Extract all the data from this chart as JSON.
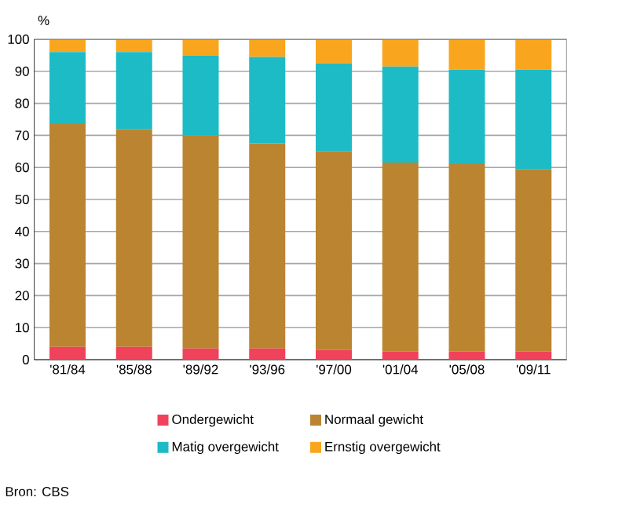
{
  "chart_data": {
    "type": "bar",
    "stacked": true,
    "ylabel": "%",
    "categories": [
      "'81/84",
      "'85/88",
      "'89/92",
      "'93/96",
      "'97/00",
      "'01/04",
      "'05/08",
      "'09/11"
    ],
    "series": [
      {
        "name": "Ondergewicht",
        "color": "#f0425a",
        "values": [
          4,
          4,
          3.5,
          3.5,
          3,
          2.5,
          2.5,
          2.5
        ]
      },
      {
        "name": "Normaal gewicht",
        "color": "#bb8430",
        "values": [
          69.5,
          68,
          66.5,
          64,
          62,
          59,
          58.5,
          57
        ]
      },
      {
        "name": "Matig overgewicht",
        "color": "#1dbbc6",
        "values": [
          22.5,
          24,
          25,
          27,
          27.5,
          30,
          29.5,
          31
        ]
      },
      {
        "name": "Ernstig overgewicht",
        "color": "#f9a61e",
        "values": [
          4,
          4,
          5,
          5.5,
          7.5,
          8.5,
          9.5,
          9.5
        ]
      }
    ],
    "ylim": [
      0,
      100
    ],
    "yticks": [
      0,
      10,
      20,
      30,
      40,
      50,
      60,
      70,
      80,
      90,
      100
    ],
    "grid": "y",
    "legend": "bottom",
    "annotations": [
      "Bron: CBS"
    ]
  }
}
